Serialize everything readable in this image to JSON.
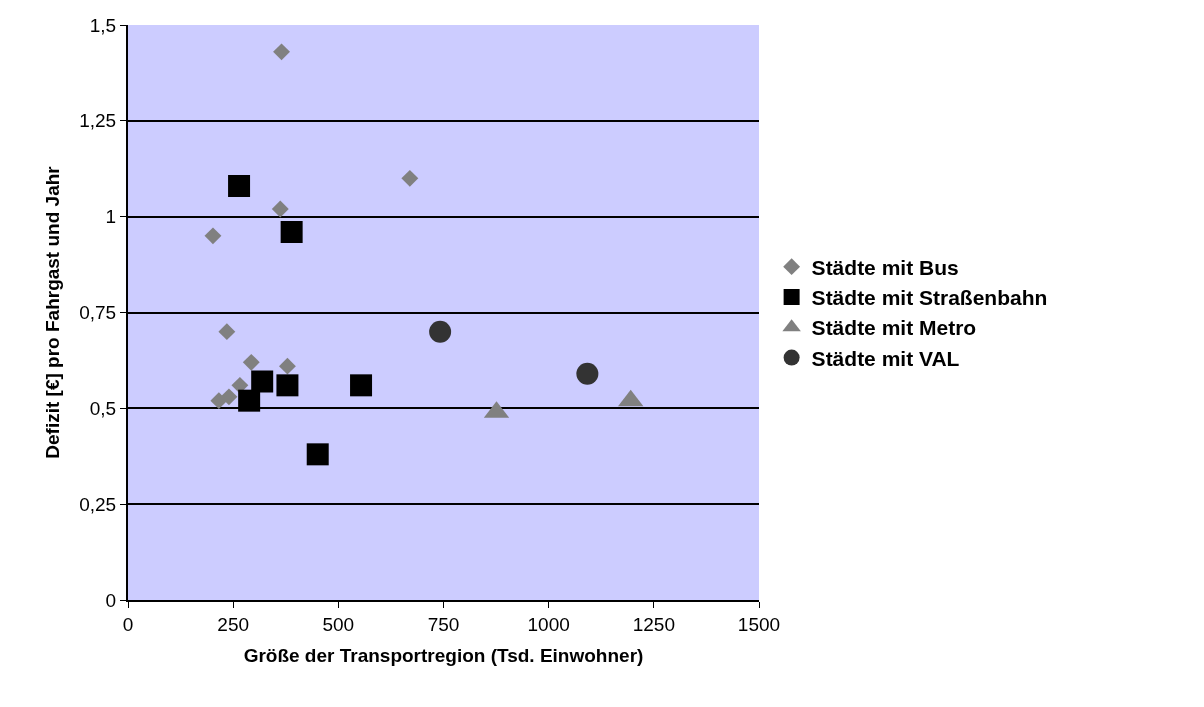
{
  "chart_data": {
    "type": "scatter",
    "xlabel": "Größe der Transportregion (Tsd. Einwohner)",
    "ylabel": "Defizit [€] pro Fahrgast und Jahr",
    "xlim": [
      0,
      1500
    ],
    "xticks": [
      0,
      250,
      500,
      750,
      1000,
      1250,
      1500
    ],
    "ylim": [
      0,
      1.5
    ],
    "yticks": [
      0,
      {
        "value": 0.25,
        "label": "0,25"
      },
      {
        "value": 0.5,
        "label": "0,5"
      },
      {
        "value": 0.75,
        "label": "0,75"
      },
      1,
      {
        "value": 1.25,
        "label": "1,25"
      },
      {
        "value": 1.5,
        "label": "1,5"
      }
    ],
    "grid": "y",
    "legend": "right",
    "series": [
      {
        "name": "Städte mit Bus",
        "color": "#808080",
        "marker": "diamond",
        "x": [
          365,
          670,
          362,
          202,
          235,
          293,
          379,
          266,
          240,
          216
        ],
        "values": [
          1.43,
          1.1,
          1.02,
          0.95,
          0.7,
          0.62,
          0.61,
          0.56,
          0.53,
          0.52
        ]
      },
      {
        "name": "Städte mit Straßenbahn",
        "color": "#000000",
        "marker": "square",
        "x": [
          264,
          389,
          319,
          379,
          288,
          554,
          451
        ],
        "values": [
          1.08,
          0.96,
          0.57,
          0.56,
          0.52,
          0.56,
          0.38
        ]
      },
      {
        "name": "Städte mit Metro",
        "color": "#808080",
        "marker": "triangle",
        "x": [
          876,
          1195
        ],
        "values": [
          0.49,
          0.52
        ]
      },
      {
        "name": "Städte mit VAL",
        "color": "#333333",
        "marker": "circle",
        "x": [
          742,
          1092
        ],
        "values": [
          0.7,
          0.59
        ]
      }
    ]
  }
}
